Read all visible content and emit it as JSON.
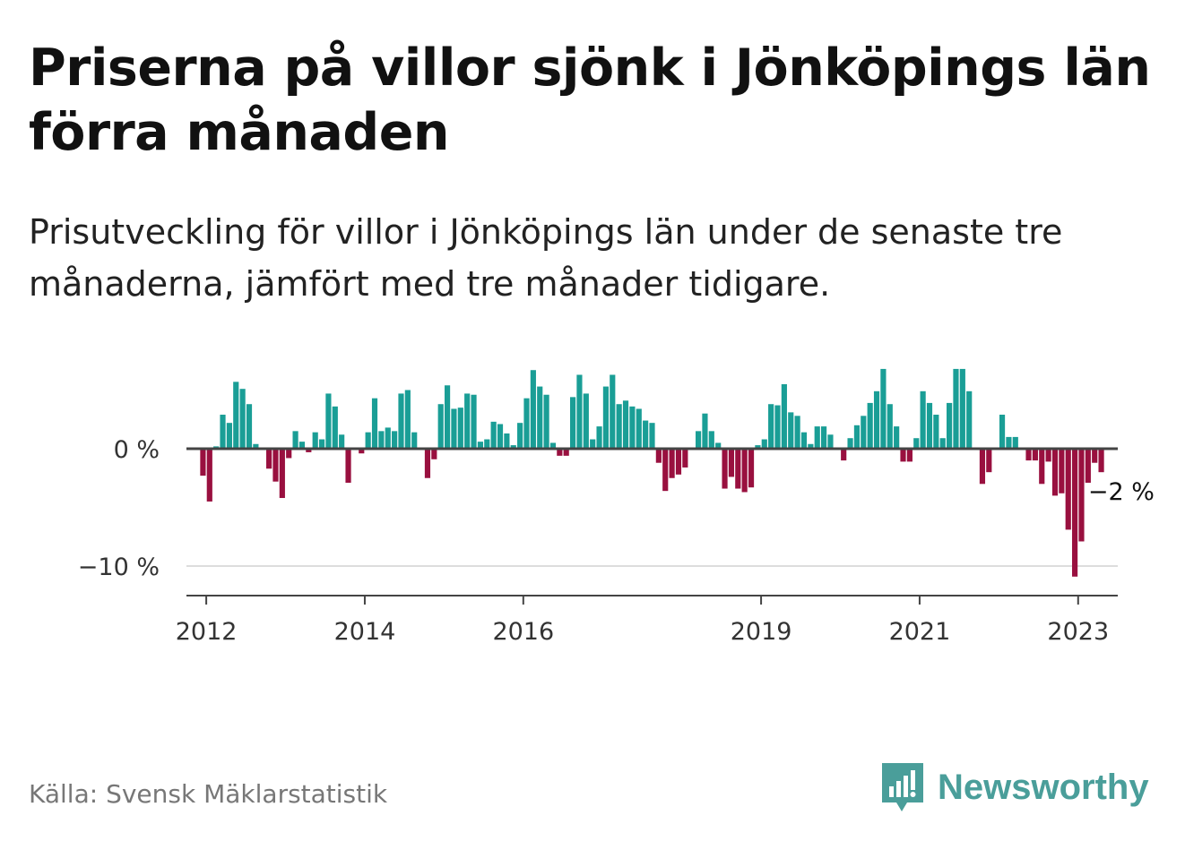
{
  "title": "Priserna på villor sjönk i Jönköpings län förra månaden",
  "subtitle": "Prisutveckling för villor i Jönköpings län under de senaste tre månaderna, jämfört med tre månader tidigare.",
  "source": "Källa: Svensk Mäklarstatistik",
  "brand": {
    "name": "Newsworthy",
    "icon": "newsworthy-chart-bubble-icon",
    "color": "#4a9e9a"
  },
  "chart_data": {
    "type": "bar",
    "colors": {
      "positive": "#1a9e96",
      "negative": "#99103f",
      "zero_line": "#444444",
      "grid": "#dddddd",
      "axis": "#444444"
    },
    "x_start": "2011-10",
    "x_end": "2023-07",
    "x_ticks": [
      {
        "date": "2012-01",
        "label": "2012"
      },
      {
        "date": "2014-01",
        "label": "2014"
      },
      {
        "date": "2016-01",
        "label": "2016"
      },
      {
        "date": "2019-01",
        "label": "2019"
      },
      {
        "date": "2021-01",
        "label": "2021"
      },
      {
        "date": "2023-01",
        "label": "2023"
      }
    ],
    "y_ticks": [
      {
        "value": 0,
        "label": "0 %"
      },
      {
        "value": -10,
        "label": "−10 %"
      }
    ],
    "ylim": [
      -12.5,
      7
    ],
    "grid": true,
    "annotation": {
      "date": "2023-04",
      "value": -2,
      "label": "−2 %"
    },
    "series": [
      {
        "values": [
          [
            "2011-12",
            -2.3
          ],
          [
            "2012-01",
            -4.5
          ],
          [
            "2012-02",
            0.2
          ],
          [
            "2012-03",
            2.9
          ],
          [
            "2012-04",
            2.2
          ],
          [
            "2012-05",
            5.7
          ],
          [
            "2012-06",
            5.1
          ],
          [
            "2012-07",
            3.8
          ],
          [
            "2012-08",
            0.4
          ],
          [
            "2012-09",
            0.0
          ],
          [
            "2012-10",
            -1.7
          ],
          [
            "2012-11",
            -2.8
          ],
          [
            "2012-12",
            -4.2
          ],
          [
            "2013-01",
            -0.8
          ],
          [
            "2013-02",
            1.5
          ],
          [
            "2013-03",
            0.6
          ],
          [
            "2013-04",
            -0.3
          ],
          [
            "2013-05",
            1.4
          ],
          [
            "2013-06",
            0.8
          ],
          [
            "2013-07",
            4.7
          ],
          [
            "2013-08",
            3.6
          ],
          [
            "2013-09",
            1.2
          ],
          [
            "2013-10",
            -2.9
          ],
          [
            "2013-11",
            0.0
          ],
          [
            "2013-12",
            -0.4
          ],
          [
            "2014-01",
            1.4
          ],
          [
            "2014-02",
            4.3
          ],
          [
            "2014-03",
            1.5
          ],
          [
            "2014-04",
            1.8
          ],
          [
            "2014-05",
            1.5
          ],
          [
            "2014-06",
            4.7
          ],
          [
            "2014-07",
            5.0
          ],
          [
            "2014-08",
            1.4
          ],
          [
            "2014-09",
            0.0
          ],
          [
            "2014-10",
            -2.5
          ],
          [
            "2014-11",
            -0.9
          ],
          [
            "2014-12",
            3.8
          ],
          [
            "2015-01",
            5.4
          ],
          [
            "2015-02",
            3.4
          ],
          [
            "2015-03",
            3.5
          ],
          [
            "2015-04",
            4.7
          ],
          [
            "2015-05",
            4.6
          ],
          [
            "2015-06",
            0.6
          ],
          [
            "2015-07",
            0.8
          ],
          [
            "2015-08",
            2.3
          ],
          [
            "2015-09",
            2.1
          ],
          [
            "2015-10",
            1.3
          ],
          [
            "2015-11",
            0.3
          ],
          [
            "2015-12",
            2.2
          ],
          [
            "2016-01",
            4.3
          ],
          [
            "2016-02",
            6.7
          ],
          [
            "2016-03",
            5.3
          ],
          [
            "2016-04",
            4.6
          ],
          [
            "2016-05",
            0.5
          ],
          [
            "2016-06",
            -0.6
          ],
          [
            "2016-07",
            -0.6
          ],
          [
            "2016-08",
            4.4
          ],
          [
            "2016-09",
            6.3
          ],
          [
            "2016-10",
            4.7
          ],
          [
            "2016-11",
            0.8
          ],
          [
            "2016-12",
            1.9
          ],
          [
            "2017-01",
            5.3
          ],
          [
            "2017-02",
            6.3
          ],
          [
            "2017-03",
            3.8
          ],
          [
            "2017-04",
            4.1
          ],
          [
            "2017-05",
            3.6
          ],
          [
            "2017-06",
            3.4
          ],
          [
            "2017-07",
            2.4
          ],
          [
            "2017-08",
            2.2
          ],
          [
            "2017-09",
            -1.2
          ],
          [
            "2017-10",
            -3.6
          ],
          [
            "2017-11",
            -2.5
          ],
          [
            "2017-12",
            -2.2
          ],
          [
            "2018-01",
            -1.6
          ],
          [
            "2018-02",
            0.0
          ],
          [
            "2018-03",
            1.5
          ],
          [
            "2018-04",
            3.0
          ],
          [
            "2018-05",
            1.5
          ],
          [
            "2018-06",
            0.5
          ],
          [
            "2018-07",
            -3.4
          ],
          [
            "2018-08",
            -2.4
          ],
          [
            "2018-09",
            -3.4
          ],
          [
            "2018-10",
            -3.7
          ],
          [
            "2018-11",
            -3.3
          ],
          [
            "2018-12",
            0.3
          ],
          [
            "2019-01",
            0.8
          ],
          [
            "2019-02",
            3.8
          ],
          [
            "2019-03",
            3.7
          ],
          [
            "2019-04",
            5.5
          ],
          [
            "2019-05",
            3.1
          ],
          [
            "2019-06",
            2.8
          ],
          [
            "2019-07",
            1.4
          ],
          [
            "2019-08",
            0.4
          ],
          [
            "2019-09",
            1.9
          ],
          [
            "2019-10",
            1.9
          ],
          [
            "2019-11",
            1.2
          ],
          [
            "2019-12",
            0.0
          ],
          [
            "2020-01",
            -1.0
          ],
          [
            "2020-02",
            0.9
          ],
          [
            "2020-03",
            2.0
          ],
          [
            "2020-04",
            2.8
          ],
          [
            "2020-05",
            3.9
          ],
          [
            "2020-06",
            4.9
          ],
          [
            "2020-07",
            6.8
          ],
          [
            "2020-08",
            3.8
          ],
          [
            "2020-09",
            1.9
          ],
          [
            "2020-10",
            -1.1
          ],
          [
            "2020-11",
            -1.1
          ],
          [
            "2020-12",
            0.9
          ],
          [
            "2021-01",
            4.9
          ],
          [
            "2021-02",
            3.9
          ],
          [
            "2021-03",
            2.9
          ],
          [
            "2021-04",
            0.9
          ],
          [
            "2021-05",
            3.9
          ],
          [
            "2021-06",
            6.8
          ],
          [
            "2021-07",
            6.8
          ],
          [
            "2021-08",
            4.9
          ],
          [
            "2021-09",
            0.0
          ],
          [
            "2021-10",
            -3.0
          ],
          [
            "2021-11",
            -2.0
          ],
          [
            "2021-12",
            0.0
          ],
          [
            "2022-01",
            2.9
          ],
          [
            "2022-02",
            1.0
          ],
          [
            "2022-03",
            1.0
          ],
          [
            "2022-04",
            0.0
          ],
          [
            "2022-05",
            -1.0
          ],
          [
            "2022-06",
            -1.0
          ],
          [
            "2022-07",
            -3.0
          ],
          [
            "2022-08",
            -1.1
          ],
          [
            "2022-09",
            -4.0
          ],
          [
            "2022-10",
            -3.8
          ],
          [
            "2022-11",
            -6.9
          ],
          [
            "2022-12",
            -10.9
          ],
          [
            "2023-01",
            -7.9
          ],
          [
            "2023-02",
            -2.9
          ],
          [
            "2023-03",
            -1.2
          ],
          [
            "2023-04",
            -2.0
          ]
        ]
      }
    ]
  }
}
